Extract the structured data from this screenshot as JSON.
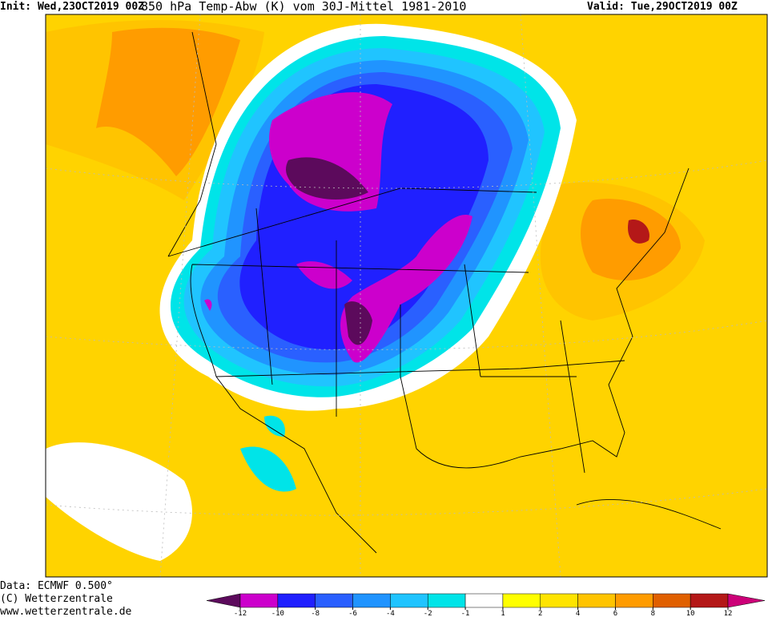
{
  "header": {
    "init": "Init: Wed,23OCT2019 00Z",
    "title": "850 hPa Temp-Abw (K) vom 30J-Mittel 1981-2010",
    "valid": "Valid: Tue,29OCT2019 00Z"
  },
  "footer": {
    "data": "Data: ECMWF  0.500°",
    "copyright": "(C) Wetterzentrale",
    "url": "www.wetterzentrale.de"
  },
  "legend": {
    "ticks": [
      -12,
      -10,
      -8,
      -6,
      -4,
      -2,
      -1,
      1,
      2,
      4,
      6,
      8,
      10,
      12
    ],
    "colors": [
      "#5c0a5c",
      "#cc00cc",
      "#2020ff",
      "#2a60ff",
      "#2094ff",
      "#20c4ff",
      "#00e4e8",
      "#ffffff",
      "#ffff00",
      "#ffe400",
      "#ffc400",
      "#ff9c00",
      "#e06000",
      "#b41818",
      "#cc0078"
    ]
  }
}
